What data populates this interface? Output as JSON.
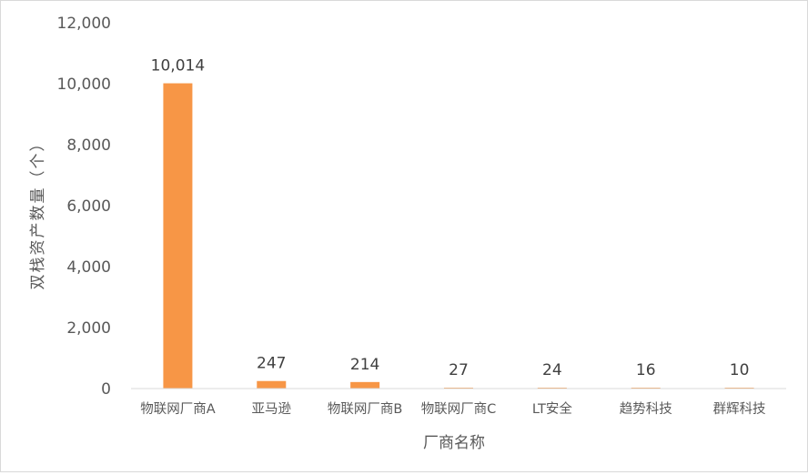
{
  "colors": {
    "bar": "#f79646",
    "axis_line": "#d9d9d9",
    "text": "#595959",
    "data_label": "#404040",
    "background": "#ffffff"
  },
  "chart_data": {
    "type": "bar",
    "title": "",
    "xlabel": "厂商名称",
    "ylabel": "双栈资产数量（个）",
    "categories": [
      "物联网厂商A",
      "亚马逊",
      "物联网厂商B",
      "物联网厂商C",
      "LT安全",
      "趋势科技",
      "群辉科技"
    ],
    "series": [
      {
        "values": [
          10014,
          247,
          214,
          27,
          24,
          16,
          10
        ]
      }
    ],
    "data_labels": [
      "10,014",
      "247",
      "214",
      "27",
      "24",
      "16",
      "10"
    ],
    "ylim": [
      0,
      12000
    ],
    "yticks": [
      0,
      2000,
      4000,
      6000,
      8000,
      10000,
      12000
    ],
    "ytick_labels": [
      "0",
      "2,000",
      "4,000",
      "6,000",
      "8,000",
      "10,000",
      "12,000"
    ],
    "grid": false,
    "legend": "none"
  }
}
